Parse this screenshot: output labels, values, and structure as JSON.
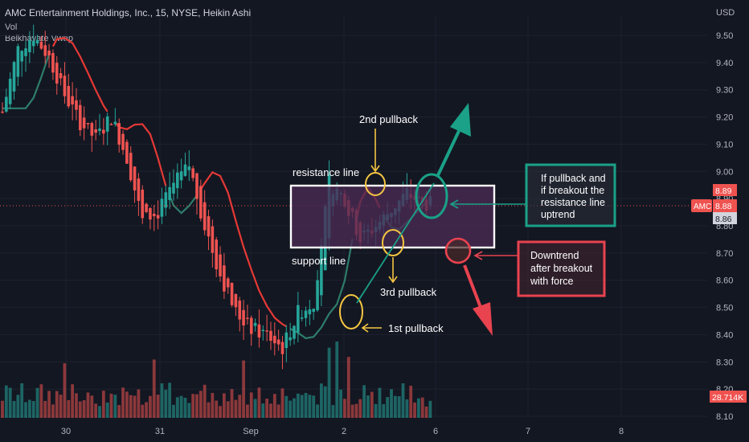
{
  "header": {
    "title": "AMC Entertainment Holdings, Inc., 15, NYSE, Heikin Ashi",
    "volume_label": "Vol",
    "indicator_label": "Belkhayate Vwap"
  },
  "price_scale": {
    "currency": "USD",
    "symbol_tag": "AMC",
    "last_price": "8.88",
    "high_tag": "8.89",
    "low_tag": "8.86",
    "volume_tag": "28.714K"
  },
  "colors": {
    "background": "#131722",
    "up_candle": "#26a69a",
    "down_candle": "#ef5350",
    "vwap_up": "#2e7d6a",
    "vwap_down": "#e53935",
    "box_fill": "#4a2a55",
    "annotation_green": "#1aa187",
    "annotation_red": "#e8434f",
    "pullback_circle": "#f5c542"
  },
  "annotations": {
    "resistance_line": "resistance line",
    "support_line": "support line",
    "pullback_1": "1st pullback",
    "pullback_2": "2nd pullback",
    "pullback_3": "3rd pullback",
    "uptrend_note": "If pullback and if breakout the resistance line uptrend",
    "uptrend_note_lines": [
      "If pullback and",
      "if breakout the",
      "resistance line",
      "uptrend"
    ],
    "downtrend_note": "Downtrend after breakout with force",
    "downtrend_note_lines": [
      "Downtrend",
      "after breakout",
      "with force"
    ]
  },
  "chart_data": {
    "type": "candlestick",
    "title": "AMC Entertainment Holdings, Inc., 15, NYSE, Heikin Ashi",
    "interval": "15",
    "exchange": "NYSE",
    "style": "Heikin Ashi",
    "currency": "USD",
    "y_ticks": [
      "9.50",
      "9.40",
      "9.30",
      "9.20",
      "9.10",
      "9.00",
      "8.90",
      "8.80",
      "8.70",
      "8.60",
      "8.50",
      "8.40",
      "8.30",
      "8.20",
      "8.10"
    ],
    "x_ticks": [
      "30",
      "31",
      "Sep",
      "2",
      "6",
      "7",
      "8"
    ],
    "ylim": [
      8.1,
      9.58
    ],
    "resistance_level": 8.96,
    "support_level": 8.74,
    "last_price": 8.88,
    "volume_last": "28.714K",
    "indicator": "Belkhayate Vwap",
    "price_path": [
      {
        "x": 0,
        "y": 9.22
      },
      {
        "x": 2,
        "y": 9.45
      },
      {
        "x": 4,
        "y": 9.5
      },
      {
        "x": 6,
        "y": 9.42
      },
      {
        "x": 8,
        "y": 9.28
      },
      {
        "x": 10,
        "y": 9.18
      },
      {
        "x": 12,
        "y": 9.12
      },
      {
        "x": 14,
        "y": 9.2
      },
      {
        "x": 16,
        "y": 9.05
      },
      {
        "x": 18,
        "y": 8.82
      },
      {
        "x": 20,
        "y": 8.85
      },
      {
        "x": 22,
        "y": 8.95
      },
      {
        "x": 24,
        "y": 9.02
      },
      {
        "x": 26,
        "y": 8.8
      },
      {
        "x": 28,
        "y": 8.62
      },
      {
        "x": 30,
        "y": 8.48
      },
      {
        "x": 32,
        "y": 8.42
      },
      {
        "x": 34,
        "y": 8.4
      },
      {
        "x": 36,
        "y": 8.35
      },
      {
        "x": 38,
        "y": 8.48
      },
      {
        "x": 40,
        "y": 8.52
      },
      {
        "x": 42,
        "y": 8.96
      },
      {
        "x": 44,
        "y": 8.9
      },
      {
        "x": 46,
        "y": 8.75
      },
      {
        "x": 48,
        "y": 8.8
      },
      {
        "x": 50,
        "y": 8.86
      },
      {
        "x": 52,
        "y": 8.92
      },
      {
        "x": 54,
        "y": 8.88
      }
    ]
  }
}
